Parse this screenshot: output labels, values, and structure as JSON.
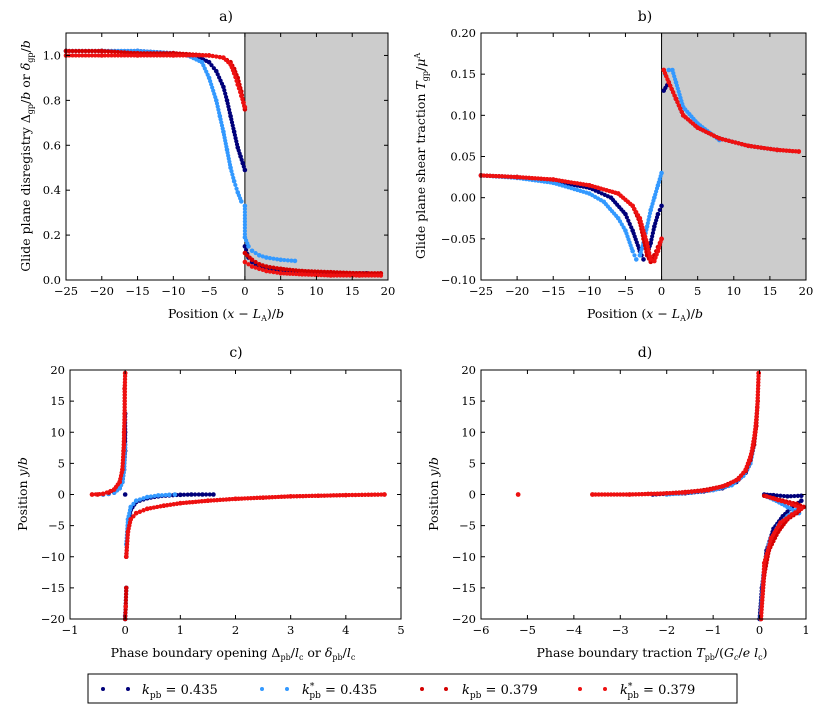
{
  "colors": {
    "kpb_0435": "#00007a",
    "kpbstar_0435": "#3399ff",
    "kpb_0379": "#d40000",
    "kpbstar_0379": "#ee1111",
    "shade": "#cccccc"
  },
  "legend": {
    "placement": "bottom",
    "entries": [
      {
        "label": "k_pb = 0.435",
        "color_key": "kpb_0435"
      },
      {
        "label": "k*_pb = 0.435",
        "color_key": "kpbstar_0435"
      },
      {
        "label": "k_pb = 0.379",
        "color_key": "kpb_0379"
      },
      {
        "label": "k*_pb = 0.379",
        "color_key": "kpbstar_0379"
      }
    ]
  },
  "chart_data": [
    {
      "panel": "a)",
      "type": "scatter",
      "xlabel": "Position (x − L_A)/b",
      "ylabel": "Glide plane disregistry Δ_gp/b or δ_gp/b",
      "xlim": [
        -25,
        20
      ],
      "ylim": [
        0.0,
        1.1
      ],
      "xticks": [
        -25,
        -20,
        -15,
        -10,
        -5,
        0,
        5,
        10,
        15,
        20
      ],
      "yticks": [
        0.0,
        0.2,
        0.4,
        0.6,
        0.8,
        1.0
      ],
      "ytick_labels": [
        "0.0",
        "0.2",
        "0.4",
        "0.6",
        "0.8",
        "1.0"
      ],
      "shaded_region": [
        0,
        20
      ],
      "vline": 0,
      "series": [
        {
          "name": "k_pb = 0.435",
          "color_key": "kpb_0435",
          "x": [
            -25,
            -20,
            -15,
            -10,
            -7,
            -5,
            -4,
            -3,
            -2.5,
            -2,
            -1.5,
            -1,
            -0.6,
            -0.3,
            0,
            0,
            0.5,
            1,
            2,
            3,
            5,
            8,
            12,
            17
          ],
          "y": [
            1.02,
            1.02,
            1.02,
            1.01,
            1.0,
            0.97,
            0.93,
            0.86,
            0.8,
            0.73,
            0.66,
            0.59,
            0.55,
            0.52,
            0.49,
            0.15,
            0.1,
            0.08,
            0.06,
            0.05,
            0.04,
            0.035,
            0.03,
            0.03
          ]
        },
        {
          "name": "k*_pb = 0.435",
          "color_key": "kpbstar_0435",
          "x": [
            -25,
            -20,
            -15,
            -10,
            -8,
            -6,
            -5,
            -4,
            -3.5,
            -3,
            -2.5,
            -2,
            -1.5,
            -1,
            -0.5,
            0,
            0,
            0.5,
            1,
            2,
            3,
            5,
            7
          ],
          "y": [
            1.02,
            1.02,
            1.02,
            1.01,
            1.0,
            0.97,
            0.9,
            0.8,
            0.73,
            0.66,
            0.58,
            0.5,
            0.44,
            0.39,
            0.35,
            0.33,
            0.19,
            0.15,
            0.13,
            0.11,
            0.1,
            0.09,
            0.085
          ]
        },
        {
          "name": "k_pb = 0.379",
          "color_key": "kpb_0379",
          "x": [
            -25,
            -20,
            -15,
            -10,
            -5,
            -3,
            -2,
            -1.5,
            -1,
            -0.5,
            -0.2,
            0,
            0,
            1,
            2,
            3,
            5,
            8,
            12,
            16,
            19
          ],
          "y": [
            1.02,
            1.02,
            1.01,
            1.01,
            1.0,
            0.99,
            0.97,
            0.94,
            0.9,
            0.84,
            0.79,
            0.76,
            0.12,
            0.09,
            0.07,
            0.06,
            0.05,
            0.04,
            0.035,
            0.03,
            0.03
          ]
        },
        {
          "name": "k*_pb = 0.379",
          "color_key": "kpbstar_0379",
          "x": [
            -25,
            -20,
            -15,
            -10,
            -5,
            -3,
            -2,
            -1.5,
            -1,
            -0.5,
            -0.2,
            0,
            0,
            1,
            2,
            3,
            5,
            8,
            12,
            16,
            19
          ],
          "y": [
            1.0,
            1.0,
            1.0,
            1.0,
            1.0,
            0.99,
            0.96,
            0.92,
            0.87,
            0.82,
            0.79,
            0.77,
            0.08,
            0.06,
            0.05,
            0.04,
            0.03,
            0.025,
            0.02,
            0.02,
            0.02
          ]
        }
      ]
    },
    {
      "panel": "b)",
      "type": "scatter",
      "xlabel": "Position (x − L_A)/b",
      "ylabel": "Glide plane shear traction T_gp/μ^A",
      "xlim": [
        -25,
        20
      ],
      "ylim": [
        -0.1,
        0.2
      ],
      "xticks": [
        -25,
        -20,
        -15,
        -10,
        -5,
        0,
        5,
        10,
        15,
        20
      ],
      "yticks": [
        -0.1,
        -0.05,
        0.0,
        0.05,
        0.1,
        0.15,
        0.2
      ],
      "ytick_labels": [
        "−0.10",
        "−0.05",
        "0.00",
        "0.05",
        "0.10",
        "0.15",
        "0.20"
      ],
      "shaded_region": [
        0,
        20
      ],
      "vline": 0,
      "series": [
        {
          "name": "k_pb = 0.435",
          "color_key": "kpb_0435",
          "x": [
            -25,
            -20,
            -15,
            -10,
            -7,
            -5,
            -4,
            -3,
            -2.5,
            -2,
            -1.5,
            -1,
            -0.5,
            0,
            0.3,
            1,
            2,
            3,
            5,
            8,
            12,
            16
          ],
          "y": [
            0.027,
            0.025,
            0.02,
            0.012,
            0.0,
            -0.02,
            -0.04,
            -0.065,
            -0.075,
            -0.07,
            -0.055,
            -0.035,
            -0.02,
            -0.01,
            0.13,
            0.14,
            0.12,
            0.1,
            0.085,
            0.072,
            0.063,
            0.058
          ]
        },
        {
          "name": "k*_pb = 0.435",
          "color_key": "kpbstar_0435",
          "x": [
            -25,
            -20,
            -15,
            -10,
            -8,
            -6,
            -5,
            -4,
            -3.5,
            -3,
            -2.5,
            -2,
            -1.5,
            -1,
            -0.5,
            0,
            0.5,
            1,
            1.5,
            2,
            3,
            5,
            8
          ],
          "y": [
            0.027,
            0.024,
            0.018,
            0.005,
            -0.005,
            -0.025,
            -0.04,
            -0.065,
            -0.075,
            -0.07,
            -0.055,
            -0.035,
            -0.015,
            0.0,
            0.015,
            0.03,
            0.15,
            0.155,
            0.155,
            0.14,
            0.11,
            0.09,
            0.07
          ]
        },
        {
          "name": "k_pb = 0.379",
          "color_key": "kpb_0379",
          "x": [
            -25,
            -20,
            -15,
            -10,
            -6,
            -4,
            -3,
            -2.5,
            -2,
            -1.5,
            -1,
            -0.5,
            0,
            0.3,
            1,
            2,
            3,
            5,
            8,
            12,
            16,
            19
          ],
          "y": [
            0.027,
            0.025,
            0.022,
            0.015,
            0.005,
            -0.01,
            -0.03,
            -0.05,
            -0.07,
            -0.078,
            -0.07,
            -0.06,
            -0.05,
            0.155,
            0.14,
            0.12,
            0.1,
            0.085,
            0.072,
            0.063,
            0.058,
            0.056
          ]
        },
        {
          "name": "k*_pb = 0.379",
          "color_key": "kpbstar_0379",
          "x": [
            -25,
            -20,
            -15,
            -10,
            -6,
            -4,
            -3,
            -2,
            -1.5,
            -1,
            -0.5,
            0,
            0.3,
            1,
            2,
            3,
            5,
            8,
            12,
            16,
            19
          ],
          "y": [
            0.027,
            0.025,
            0.022,
            0.015,
            0.005,
            -0.01,
            -0.025,
            -0.055,
            -0.075,
            -0.077,
            -0.065,
            -0.05,
            0.155,
            0.14,
            0.12,
            0.1,
            0.085,
            0.072,
            0.063,
            0.058,
            0.056
          ]
        }
      ]
    },
    {
      "panel": "c)",
      "type": "scatter",
      "xlabel": "Phase boundary opening Δ_pb/l_c or δ_pb/l_c",
      "ylabel": "Position y/b",
      "xlim": [
        -1,
        5
      ],
      "ylim": [
        -20,
        20
      ],
      "xticks": [
        -1,
        0,
        1,
        2,
        3,
        4,
        5
      ],
      "yticks": [
        -20,
        -15,
        -10,
        -5,
        0,
        5,
        10,
        15,
        20
      ],
      "series": [
        {
          "name": "k_pb = 0.435",
          "color_key": "kpb_0435",
          "x": [
            -0.4,
            -0.3,
            -0.2,
            -0.1,
            -0.05,
            -0.02,
            0.0,
            0.0,
            0.0,
            0.0,
            0.0,
            0.02,
            0.05,
            0.1,
            0.2,
            0.4,
            0.6,
            0.8,
            1.0,
            1.2,
            1.4,
            1.6,
            0.02,
            0.01,
            0.0
          ],
          "y": [
            0.0,
            0.1,
            0.3,
            1.0,
            2.0,
            4.0,
            7.0,
            10.0,
            13.0,
            0.0,
            -20.0,
            -10.0,
            -5.0,
            -2.5,
            -1.2,
            -0.6,
            -0.3,
            -0.15,
            -0.05,
            0.0,
            0.0,
            0.0,
            -15.0,
            -18.0,
            -19.5
          ]
        },
        {
          "name": "k*_pb = 0.435",
          "color_key": "kpbstar_0435",
          "x": [
            -0.4,
            -0.3,
            -0.2,
            -0.1,
            -0.05,
            -0.02,
            0.0,
            0.02,
            0.05,
            0.1,
            0.2,
            0.4,
            0.6,
            0.8,
            0.9,
            0.02,
            0.01,
            0.0
          ],
          "y": [
            0.0,
            0.1,
            0.3,
            1.0,
            2.0,
            4.0,
            8.0,
            -8.0,
            -4.0,
            -2.0,
            -1.0,
            -0.4,
            -0.15,
            -0.05,
            0.0,
            -15.0,
            -18.0,
            -20.0
          ]
        },
        {
          "name": "k_pb = 0.379",
          "color_key": "kpb_0379",
          "x": [
            -0.6,
            -0.5,
            -0.4,
            -0.3,
            -0.2,
            -0.1,
            -0.05,
            -0.03,
            -0.02,
            -0.01,
            -0.01,
            0.0,
            0.02,
            0.05,
            0.1,
            0.2,
            0.4,
            0.7,
            1.0,
            1.5,
            2.0,
            2.5,
            3.0,
            3.5,
            4.0,
            4.7,
            0.02,
            0.01,
            0.0
          ],
          "y": [
            0.0,
            0.0,
            0.1,
            0.3,
            0.8,
            2.0,
            4.0,
            7.0,
            10.0,
            13.0,
            17.0,
            19.5,
            -10.0,
            -6.0,
            -4.0,
            -3.0,
            -2.3,
            -1.8,
            -1.4,
            -1.0,
            -0.7,
            -0.5,
            -0.3,
            -0.2,
            -0.1,
            0.0,
            -15.0,
            -18.0,
            -20.0
          ]
        },
        {
          "name": "k*_pb = 0.379",
          "color_key": "kpbstar_0379",
          "x": [
            -0.6,
            -0.4,
            -0.2,
            -0.1,
            -0.05,
            -0.02,
            -0.01,
            0.0,
            0.02,
            0.05,
            0.1,
            0.2,
            0.4,
            0.7,
            1.0,
            1.5,
            2.0,
            2.5,
            3.0,
            3.5,
            4.0,
            4.7,
            0.01
          ],
          "y": [
            0.0,
            0.1,
            0.8,
            2.0,
            4.0,
            8.0,
            12.0,
            19.5,
            -10.0,
            -6.0,
            -4.0,
            -3.0,
            -2.3,
            -1.8,
            -1.4,
            -1.0,
            -0.7,
            -0.5,
            -0.3,
            -0.2,
            -0.1,
            0.0,
            -18.0
          ]
        }
      ]
    },
    {
      "panel": "d)",
      "type": "scatter",
      "xlabel": "Phase boundary traction T_pb/(G_c/e l_c)",
      "ylabel": "Position y/b",
      "xlim": [
        -6,
        1
      ],
      "ylim": [
        -20,
        20
      ],
      "xticks": [
        -6,
        -5,
        -4,
        -3,
        -2,
        -1,
        0,
        1
      ],
      "yticks": [
        -20,
        -15,
        -10,
        -5,
        0,
        5,
        10,
        15,
        20
      ],
      "series": [
        {
          "name": "k_pb = 0.435",
          "color_key": "kpb_0435",
          "x": [
            -2.3,
            -2.0,
            -1.6,
            -1.2,
            -0.8,
            -0.5,
            -0.3,
            -0.2,
            -0.12,
            -0.08,
            -0.05,
            0.1,
            0.3,
            0.6,
            0.9,
            0.9,
            0.7,
            0.5,
            0.3,
            0.15,
            0.05,
            0.0
          ],
          "y": [
            0.0,
            0.1,
            0.2,
            0.5,
            1.0,
            2.0,
            3.5,
            5.0,
            8.0,
            11.0,
            14.0,
            0.0,
            -0.1,
            -0.3,
            -0.2,
            -1.0,
            -2.0,
            -3.5,
            -5.5,
            -9.0,
            -15.0,
            -20.0
          ]
        },
        {
          "name": "k*_pb = 0.435",
          "color_key": "kpbstar_0435",
          "x": [
            -2.0,
            -1.5,
            -1.0,
            -0.6,
            -0.35,
            -0.2,
            -0.12,
            -0.08,
            0.1,
            0.3,
            0.6,
            0.85,
            0.8,
            0.6,
            0.4,
            0.2,
            0.08,
            0.02
          ],
          "y": [
            0.0,
            0.3,
            0.7,
            1.5,
            3.0,
            5.0,
            8.0,
            11.0,
            -0.2,
            -0.8,
            -2.0,
            -3.0,
            -2.5,
            -3.5,
            -5.0,
            -8.0,
            -13.0,
            -20.0
          ]
        },
        {
          "name": "k_pb = 0.379",
          "color_key": "kpb_0379",
          "x": [
            -5.2,
            -3.6,
            -2.8,
            -2.4,
            -2.0,
            -1.6,
            -1.2,
            -0.8,
            -0.5,
            -0.3,
            -0.2,
            -0.12,
            -0.07,
            -0.04,
            -0.02,
            0.1,
            0.3,
            0.5,
            0.8,
            0.95,
            0.8,
            0.6,
            0.4,
            0.2,
            0.1,
            0.03
          ],
          "y": [
            0.0,
            0.0,
            0.0,
            0.1,
            0.2,
            0.4,
            0.7,
            1.3,
            2.3,
            3.8,
            5.5,
            8.0,
            11.0,
            15.0,
            19.5,
            -0.2,
            -0.6,
            -1.0,
            -1.5,
            -2.0,
            -3.0,
            -4.0,
            -6.0,
            -9.0,
            -13.0,
            -20.0
          ]
        },
        {
          "name": "k*_pb = 0.379",
          "color_key": "kpbstar_0379",
          "x": [
            -5.2,
            -3.6,
            -2.8,
            -2.2,
            -1.6,
            -1.1,
            -0.7,
            -0.45,
            -0.3,
            -0.18,
            -0.1,
            -0.05,
            -0.02,
            0.15,
            0.4,
            0.7,
            0.9,
            0.7,
            0.45,
            0.25,
            0.1,
            0.03
          ],
          "y": [
            0.0,
            0.0,
            0.0,
            0.1,
            0.3,
            0.7,
            1.5,
            2.5,
            4.0,
            6.5,
            10.0,
            14.0,
            19.5,
            -0.3,
            -0.9,
            -1.6,
            -2.2,
            -3.2,
            -4.5,
            -7.0,
            -11.0,
            -20.0
          ]
        }
      ]
    }
  ]
}
